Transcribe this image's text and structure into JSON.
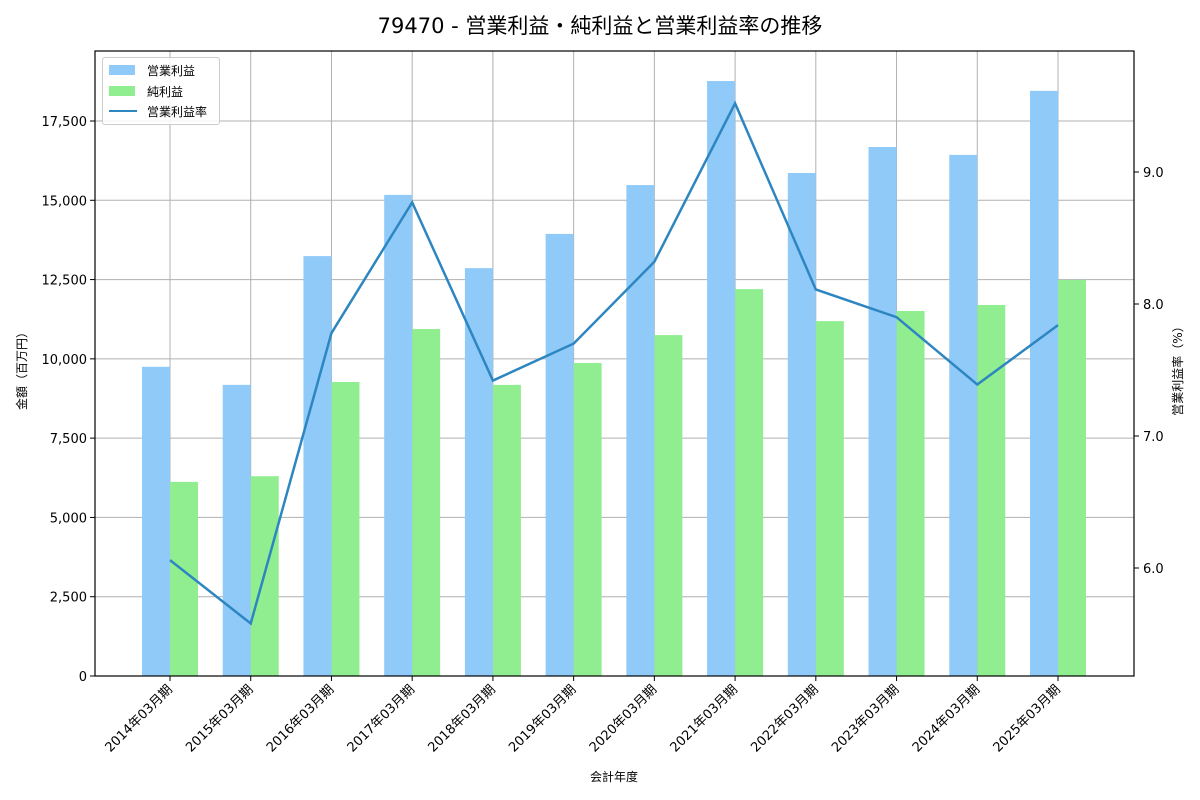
{
  "title": "79470 - 営業利益・純利益と営業利益率の推移",
  "colors": {
    "operating_profit": "#90caf9",
    "net_profit": "#90ee90",
    "operating_margin": "#2e86c1",
    "grid": "#b0b0b0"
  },
  "legend": {
    "items": [
      {
        "label": "営業利益",
        "type": "bar"
      },
      {
        "label": "純利益",
        "type": "bar"
      },
      {
        "label": "営業利益率",
        "type": "line"
      }
    ]
  },
  "axes": {
    "xlabel": "会計年度",
    "ylabel_left": "金額（百万円）",
    "ylabel_right": "営業利益率（%）",
    "left_ticks": [
      "0",
      "2,500",
      "5,000",
      "7,500",
      "10,000",
      "12,500",
      "15,000",
      "17,500"
    ],
    "right_ticks": [
      "6.0",
      "7.0",
      "8.0",
      "9.0"
    ]
  },
  "chart_data": {
    "type": "bar",
    "title": "79470 - 営業利益・純利益と営業利益率の推移",
    "xlabel": "会計年度",
    "ylabel": "金額（百万円）",
    "ylabel_secondary": "営業利益率（%）",
    "categories": [
      "2014年03月期",
      "2015年03月期",
      "2016年03月期",
      "2017年03月期",
      "2018年03月期",
      "2019年03月期",
      "2020年03月期",
      "2021年03月期",
      "2022年03月期",
      "2023年03月期",
      "2024年03月期",
      "2025年03月期"
    ],
    "series": [
      {
        "name": "営業利益",
        "type": "bar",
        "axis": "left",
        "values": [
          9750,
          9180,
          13240,
          15170,
          12860,
          13940,
          15480,
          18760,
          15860,
          16680,
          16430,
          18450
        ]
      },
      {
        "name": "純利益",
        "type": "bar",
        "axis": "left",
        "values": [
          6120,
          6300,
          9270,
          10940,
          9180,
          9870,
          10750,
          12200,
          11190,
          11510,
          11700,
          12490
        ]
      },
      {
        "name": "営業利益率",
        "type": "line",
        "axis": "right",
        "values": [
          6.06,
          5.58,
          7.78,
          8.77,
          7.42,
          7.7,
          8.32,
          9.52,
          8.11,
          7.9,
          7.39,
          7.84
        ]
      }
    ],
    "ylim": [
      0,
      19700
    ],
    "ylim_secondary": [
      5.2,
      9.94
    ],
    "grid": true,
    "legend_position": "upper left"
  }
}
